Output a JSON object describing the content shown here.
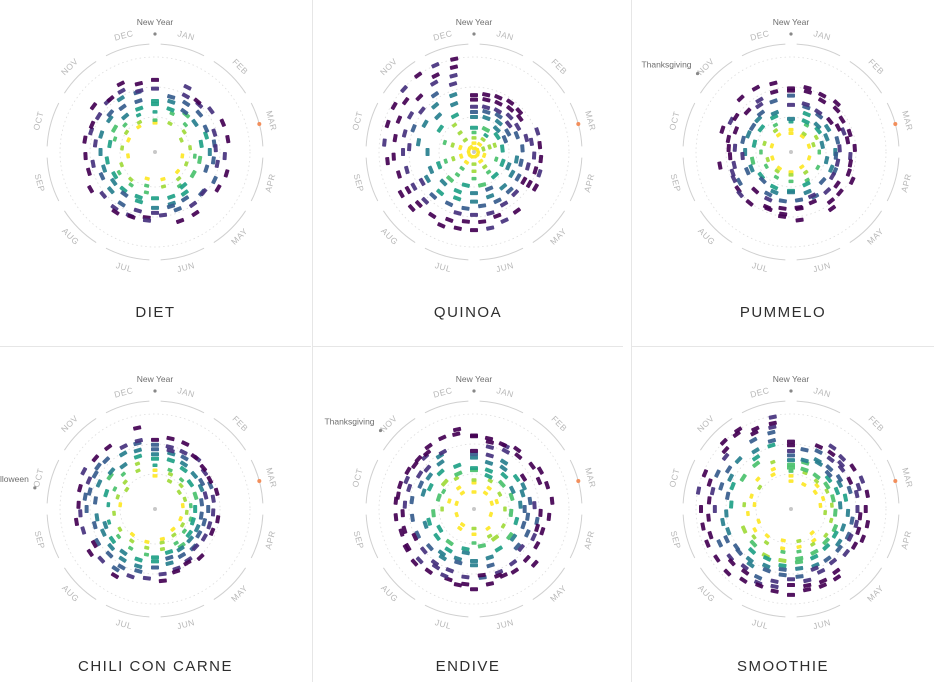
{
  "colors": {
    "palette": [
      "#440154",
      "#46327e",
      "#365c8d",
      "#277f8e",
      "#1fa187",
      "#4ac16d",
      "#a0da39",
      "#fde725"
    ],
    "month_label": "#b8b8b8",
    "ring": "#d0d0d0",
    "ring_dotted": "#dcdcdc",
    "event_dot": "#888888",
    "event_highlight": "#f28e5b",
    "center_dot": "#c8c8c8"
  },
  "months": [
    "JAN",
    "FEB",
    "MAR",
    "APR",
    "MAY",
    "JUN",
    "JUL",
    "AUG",
    "SEP",
    "OCT",
    "NOV",
    "DEC"
  ],
  "chart_data": [
    {
      "type": "radial",
      "title": "DIET",
      "events": [
        {
          "label": "New Year",
          "month": "JAN"
        }
      ],
      "highlight_month": "MAR",
      "shape": {
        "rings": 8,
        "inner": 0.3,
        "outer": 0.75,
        "spiral": 0.05,
        "squash": 0.0,
        "wobble": 0.12,
        "seed": 11
      }
    },
    {
      "type": "radial",
      "title": "QUINOA",
      "events": [
        {
          "label": "New Year",
          "month": "JAN"
        }
      ],
      "highlight_month": "MAR",
      "shape": {
        "rings": 11,
        "inner": 0.05,
        "outer": 0.82,
        "spiral": 0.55,
        "squash": 0.0,
        "wobble": 0.05,
        "seed": 23
      }
    },
    {
      "type": "radial",
      "title": "PUMMELO",
      "events": [
        {
          "label": "New Year",
          "month": "JAN"
        },
        {
          "label": "Thanksgiving",
          "month": "NOV"
        }
      ],
      "highlight_month": "MAR",
      "shape": {
        "rings": 9,
        "inner": 0.2,
        "outer": 0.7,
        "spiral": 0.08,
        "squash": 0.05,
        "wobble": 0.18,
        "seed": 37
      }
    },
    {
      "type": "radial",
      "title": "CHILI CON CARNE",
      "events": [
        {
          "label": "New Year",
          "month": "JAN"
        },
        {
          "label": "Halloween",
          "month": "OCT"
        }
      ],
      "highlight_month": "MAR",
      "shape": {
        "rings": 8,
        "inner": 0.35,
        "outer": 0.8,
        "spiral": 0.1,
        "squash": 0.3,
        "wobble": 0.1,
        "seed": 41
      }
    },
    {
      "type": "radial",
      "title": "ENDIVE",
      "events": [
        {
          "label": "New Year",
          "month": "JAN"
        },
        {
          "label": "Thanksgiving",
          "month": "NOV"
        }
      ],
      "highlight_month": "MAR",
      "shape": {
        "rings": 10,
        "inner": 0.2,
        "outer": 0.82,
        "spiral": 0.08,
        "squash": 0.0,
        "wobble": 0.14,
        "seed": 53
      }
    },
    {
      "type": "radial",
      "title": "SMOOTHIE",
      "events": [
        {
          "label": "New Year",
          "month": "JAN"
        }
      ],
      "highlight_month": "MAR",
      "shape": {
        "rings": 10,
        "inner": 0.35,
        "outer": 0.88,
        "spiral": 0.35,
        "squash": 0.0,
        "wobble": 0.08,
        "seed": 67
      }
    }
  ]
}
